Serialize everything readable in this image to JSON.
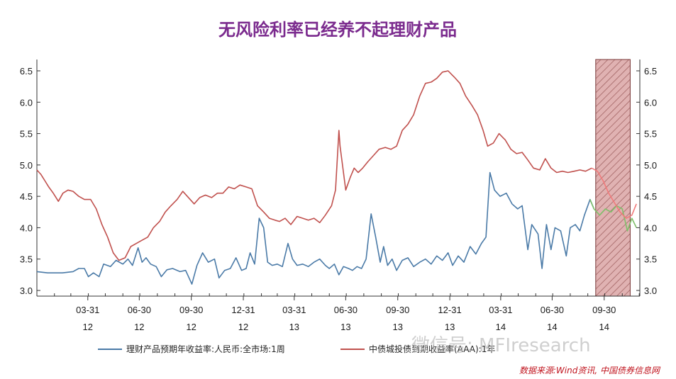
{
  "chart_data": {
    "type": "line",
    "title": "无风险利率已经养不起理财产品",
    "ylim": [
      3.0,
      6.5
    ],
    "yticks": [
      "3.0",
      "3.5",
      "4.0",
      "4.5",
      "5.0",
      "5.5",
      "6.0",
      "6.5"
    ],
    "x_tick_labels": [
      {
        "md": "03-31",
        "yr": "12"
      },
      {
        "md": "06-30",
        "yr": "12"
      },
      {
        "md": "09-30",
        "yr": "12"
      },
      {
        "md": "12-31",
        "yr": "12"
      },
      {
        "md": "03-31",
        "yr": "13"
      },
      {
        "md": "06-30",
        "yr": "13"
      },
      {
        "md": "09-30",
        "yr": "13"
      },
      {
        "md": "12-31",
        "yr": "13"
      },
      {
        "md": "03-31",
        "yr": "14"
      },
      {
        "md": "06-30",
        "yr": "14"
      },
      {
        "md": "09-30",
        "yr": "14"
      }
    ],
    "grid": false,
    "legend_position": "bottom",
    "highlight_region": {
      "x_start": "2014-09-15",
      "x_end": "2014-11-15",
      "pattern": "hatched",
      "color": "#d8a0a0"
    },
    "series": [
      {
        "name": "理财产品预期年收益率:人民币:全市场:1周",
        "color": "#4a7aa7",
        "points": [
          [
            "2012-01-01",
            3.3
          ],
          [
            "2012-01-20",
            3.28
          ],
          [
            "2012-02-15",
            3.28
          ],
          [
            "2012-03-05",
            3.3
          ],
          [
            "2012-03-15",
            3.35
          ],
          [
            "2012-03-25",
            3.35
          ],
          [
            "2012-04-01",
            3.22
          ],
          [
            "2012-04-10",
            3.28
          ],
          [
            "2012-04-20",
            3.22
          ],
          [
            "2012-04-28",
            3.42
          ],
          [
            "2012-05-10",
            3.38
          ],
          [
            "2012-05-20",
            3.48
          ],
          [
            "2012-06-01",
            3.42
          ],
          [
            "2012-06-10",
            3.5
          ],
          [
            "2012-06-18",
            3.4
          ],
          [
            "2012-06-28",
            3.68
          ],
          [
            "2012-07-05",
            3.45
          ],
          [
            "2012-07-12",
            3.52
          ],
          [
            "2012-07-20",
            3.42
          ],
          [
            "2012-07-30",
            3.38
          ],
          [
            "2012-08-08",
            3.22
          ],
          [
            "2012-08-18",
            3.33
          ],
          [
            "2012-08-28",
            3.35
          ],
          [
            "2012-09-10",
            3.3
          ],
          [
            "2012-09-20",
            3.32
          ],
          [
            "2012-10-01",
            3.1
          ],
          [
            "2012-10-10",
            3.4
          ],
          [
            "2012-10-20",
            3.6
          ],
          [
            "2012-10-30",
            3.45
          ],
          [
            "2012-11-10",
            3.5
          ],
          [
            "2012-11-18",
            3.2
          ],
          [
            "2012-11-28",
            3.32
          ],
          [
            "2012-12-08",
            3.35
          ],
          [
            "2012-12-18",
            3.52
          ],
          [
            "2012-12-28",
            3.32
          ],
          [
            "2013-01-05",
            3.35
          ],
          [
            "2013-01-12",
            3.6
          ],
          [
            "2013-01-20",
            3.42
          ],
          [
            "2013-01-28",
            4.15
          ],
          [
            "2013-02-05",
            4.0
          ],
          [
            "2013-02-12",
            3.45
          ],
          [
            "2013-02-20",
            3.4
          ],
          [
            "2013-03-01",
            3.42
          ],
          [
            "2013-03-10",
            3.38
          ],
          [
            "2013-03-20",
            3.75
          ],
          [
            "2013-03-28",
            3.5
          ],
          [
            "2013-04-05",
            3.4
          ],
          [
            "2013-04-15",
            3.42
          ],
          [
            "2013-04-25",
            3.38
          ],
          [
            "2013-05-05",
            3.45
          ],
          [
            "2013-05-15",
            3.5
          ],
          [
            "2013-05-25",
            3.4
          ],
          [
            "2013-06-01",
            3.35
          ],
          [
            "2013-06-10",
            3.42
          ],
          [
            "2013-06-18",
            3.25
          ],
          [
            "2013-06-26",
            3.38
          ],
          [
            "2013-07-05",
            3.35
          ],
          [
            "2013-07-12",
            3.32
          ],
          [
            "2013-07-20",
            3.38
          ],
          [
            "2013-07-28",
            3.35
          ],
          [
            "2013-08-05",
            3.5
          ],
          [
            "2013-08-14",
            4.22
          ],
          [
            "2013-08-22",
            3.85
          ],
          [
            "2013-08-30",
            3.45
          ],
          [
            "2013-09-05",
            3.7
          ],
          [
            "2013-09-12",
            3.4
          ],
          [
            "2013-09-20",
            3.5
          ],
          [
            "2013-09-28",
            3.32
          ],
          [
            "2013-10-08",
            3.48
          ],
          [
            "2013-10-18",
            3.52
          ],
          [
            "2013-10-28",
            3.38
          ],
          [
            "2013-11-08",
            3.45
          ],
          [
            "2013-11-18",
            3.5
          ],
          [
            "2013-11-28",
            3.42
          ],
          [
            "2013-12-08",
            3.55
          ],
          [
            "2013-12-18",
            3.48
          ],
          [
            "2013-12-28",
            3.6
          ],
          [
            "2014-01-05",
            3.4
          ],
          [
            "2014-01-15",
            3.55
          ],
          [
            "2014-01-25",
            3.45
          ],
          [
            "2014-02-05",
            3.7
          ],
          [
            "2014-02-15",
            3.58
          ],
          [
            "2014-02-25",
            3.75
          ],
          [
            "2014-03-05",
            3.85
          ],
          [
            "2014-03-12",
            4.88
          ],
          [
            "2014-03-20",
            4.6
          ],
          [
            "2014-03-30",
            4.5
          ],
          [
            "2014-04-10",
            4.55
          ],
          [
            "2014-04-20",
            4.38
          ],
          [
            "2014-04-30",
            4.3
          ],
          [
            "2014-05-08",
            4.35
          ],
          [
            "2014-05-18",
            3.65
          ],
          [
            "2014-05-25",
            4.05
          ],
          [
            "2014-06-05",
            3.9
          ],
          [
            "2014-06-12",
            3.35
          ],
          [
            "2014-06-20",
            4.05
          ],
          [
            "2014-06-28",
            3.65
          ],
          [
            "2014-07-05",
            4.0
          ],
          [
            "2014-07-15",
            3.95
          ],
          [
            "2014-07-25",
            3.55
          ],
          [
            "2014-08-01",
            4.0
          ],
          [
            "2014-08-10",
            4.05
          ],
          [
            "2014-08-18",
            3.95
          ],
          [
            "2014-08-26",
            4.2
          ],
          [
            "2014-09-05",
            4.45
          ],
          [
            "2014-09-12",
            4.3
          ],
          [
            "2014-09-22",
            4.2
          ],
          [
            "2014-10-02",
            4.3
          ],
          [
            "2014-10-12",
            4.25
          ],
          [
            "2014-10-22",
            4.35
          ],
          [
            "2014-11-01",
            4.3
          ],
          [
            "2014-11-10",
            3.95
          ],
          [
            "2014-11-18",
            4.15
          ],
          [
            "2014-11-26",
            4.0
          ]
        ]
      },
      {
        "name": "中债城投债到期收益率(AAA):1年",
        "color": "#c0504d",
        "points": [
          [
            "2012-01-01",
            4.92
          ],
          [
            "2012-01-08",
            4.85
          ],
          [
            "2012-01-15",
            4.75
          ],
          [
            "2012-01-22",
            4.65
          ],
          [
            "2012-01-30",
            4.55
          ],
          [
            "2012-02-08",
            4.42
          ],
          [
            "2012-02-16",
            4.55
          ],
          [
            "2012-02-25",
            4.6
          ],
          [
            "2012-03-05",
            4.58
          ],
          [
            "2012-03-15",
            4.5
          ],
          [
            "2012-03-25",
            4.45
          ],
          [
            "2012-04-05",
            4.45
          ],
          [
            "2012-04-15",
            4.3
          ],
          [
            "2012-04-25",
            4.05
          ],
          [
            "2012-05-05",
            3.85
          ],
          [
            "2012-05-15",
            3.6
          ],
          [
            "2012-05-25",
            3.48
          ],
          [
            "2012-06-05",
            3.52
          ],
          [
            "2012-06-15",
            3.7
          ],
          [
            "2012-06-25",
            3.75
          ],
          [
            "2012-07-05",
            3.8
          ],
          [
            "2012-07-15",
            3.85
          ],
          [
            "2012-07-25",
            4.0
          ],
          [
            "2012-08-05",
            4.1
          ],
          [
            "2012-08-15",
            4.25
          ],
          [
            "2012-08-25",
            4.35
          ],
          [
            "2012-09-05",
            4.45
          ],
          [
            "2012-09-15",
            4.58
          ],
          [
            "2012-09-25",
            4.48
          ],
          [
            "2012-10-05",
            4.38
          ],
          [
            "2012-10-15",
            4.48
          ],
          [
            "2012-10-25",
            4.52
          ],
          [
            "2012-11-05",
            4.48
          ],
          [
            "2012-11-15",
            4.55
          ],
          [
            "2012-11-25",
            4.55
          ],
          [
            "2012-12-05",
            4.65
          ],
          [
            "2012-12-15",
            4.62
          ],
          [
            "2012-12-25",
            4.68
          ],
          [
            "2013-01-05",
            4.65
          ],
          [
            "2013-01-15",
            4.62
          ],
          [
            "2013-01-25",
            4.35
          ],
          [
            "2013-02-05",
            4.25
          ],
          [
            "2013-02-15",
            4.15
          ],
          [
            "2013-02-25",
            4.12
          ],
          [
            "2013-03-05",
            4.1
          ],
          [
            "2013-03-15",
            4.15
          ],
          [
            "2013-03-25",
            4.05
          ],
          [
            "2013-04-05",
            4.18
          ],
          [
            "2013-04-15",
            4.15
          ],
          [
            "2013-04-25",
            4.12
          ],
          [
            "2013-05-05",
            4.15
          ],
          [
            "2013-05-15",
            4.08
          ],
          [
            "2013-05-25",
            4.2
          ],
          [
            "2013-06-05",
            4.35
          ],
          [
            "2013-06-12",
            4.6
          ],
          [
            "2013-06-18",
            5.55
          ],
          [
            "2013-06-20",
            5.3
          ],
          [
            "2013-06-25",
            4.95
          ],
          [
            "2013-06-30",
            4.6
          ],
          [
            "2013-07-08",
            4.8
          ],
          [
            "2013-07-15",
            4.95
          ],
          [
            "2013-07-22",
            4.88
          ],
          [
            "2013-07-30",
            4.95
          ],
          [
            "2013-08-08",
            5.05
          ],
          [
            "2013-08-18",
            5.15
          ],
          [
            "2013-08-28",
            5.25
          ],
          [
            "2013-09-08",
            5.28
          ],
          [
            "2013-09-18",
            5.25
          ],
          [
            "2013-09-28",
            5.3
          ],
          [
            "2013-10-08",
            5.55
          ],
          [
            "2013-10-18",
            5.65
          ],
          [
            "2013-10-28",
            5.8
          ],
          [
            "2013-11-08",
            6.1
          ],
          [
            "2013-11-18",
            6.3
          ],
          [
            "2013-11-28",
            6.32
          ],
          [
            "2013-12-08",
            6.38
          ],
          [
            "2013-12-18",
            6.48
          ],
          [
            "2013-12-28",
            6.5
          ],
          [
            "2014-01-08",
            6.4
          ],
          [
            "2014-01-18",
            6.3
          ],
          [
            "2014-01-28",
            6.1
          ],
          [
            "2014-02-08",
            5.95
          ],
          [
            "2014-02-18",
            5.8
          ],
          [
            "2014-02-28",
            5.55
          ],
          [
            "2014-03-08",
            5.3
          ],
          [
            "2014-03-18",
            5.35
          ],
          [
            "2014-03-28",
            5.5
          ],
          [
            "2014-04-08",
            5.4
          ],
          [
            "2014-04-18",
            5.25
          ],
          [
            "2014-04-28",
            5.18
          ],
          [
            "2014-05-08",
            5.2
          ],
          [
            "2014-05-18",
            5.08
          ],
          [
            "2014-05-28",
            4.95
          ],
          [
            "2014-06-08",
            4.92
          ],
          [
            "2014-06-18",
            5.1
          ],
          [
            "2014-06-28",
            4.95
          ],
          [
            "2014-07-08",
            4.88
          ],
          [
            "2014-07-18",
            4.9
          ],
          [
            "2014-07-28",
            4.88
          ],
          [
            "2014-08-08",
            4.9
          ],
          [
            "2014-08-18",
            4.92
          ],
          [
            "2014-08-28",
            4.9
          ],
          [
            "2014-09-08",
            4.95
          ],
          [
            "2014-09-18",
            4.9
          ],
          [
            "2014-09-28",
            4.75
          ],
          [
            "2014-10-08",
            4.55
          ],
          [
            "2014-10-18",
            4.4
          ],
          [
            "2014-10-28",
            4.25
          ],
          [
            "2014-11-08",
            4.15
          ],
          [
            "2014-11-18",
            4.2
          ],
          [
            "2014-11-26",
            4.38
          ]
        ]
      }
    ]
  },
  "watermark": "微信号: MFIresearch",
  "source": "数据来源:Wind资讯, 中国债券信息网"
}
